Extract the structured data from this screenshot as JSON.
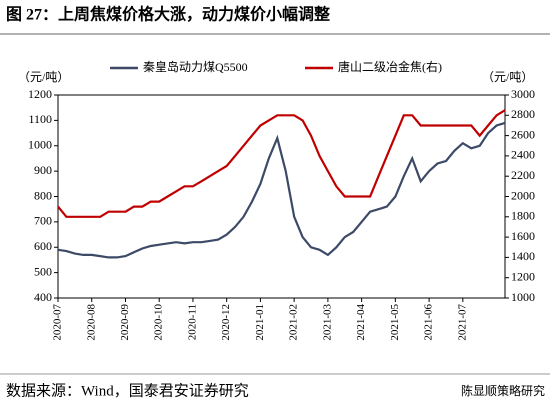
{
  "chart_data": {
    "type": "line",
    "title": "图 27：上周焦煤价格大涨，动力煤价小幅调整",
    "source": "数据来源：Wind，国泰君安证券研究",
    "watermark": "陈显顺策略研究",
    "y_unit": "（元/吨）",
    "y2_unit": "（元/吨）",
    "categories": [
      "2020-07",
      null,
      null,
      null,
      "2020-08",
      null,
      null,
      null,
      "2020-09",
      null,
      null,
      null,
      "2020-10",
      null,
      null,
      null,
      "2020-11",
      null,
      null,
      null,
      "2020-12",
      null,
      null,
      null,
      "2021-01",
      null,
      null,
      null,
      "2021-02",
      null,
      null,
      null,
      "2021-03",
      null,
      null,
      null,
      "2021-04",
      null,
      null,
      null,
      "2021-05",
      null,
      null,
      null,
      "2021-06",
      null,
      null,
      null,
      "2021-07",
      null,
      null,
      null,
      null,
      null
    ],
    "series": [
      {
        "name": "秦皇岛动力煤Q5500",
        "color": "#3c4a67",
        "axis": "y",
        "values": [
          590,
          585,
          575,
          570,
          570,
          565,
          560,
          560,
          565,
          580,
          595,
          605,
          610,
          615,
          620,
          615,
          620,
          620,
          625,
          630,
          650,
          680,
          720,
          780,
          850,
          950,
          1030,
          900,
          720,
          640,
          600,
          590,
          570,
          600,
          640,
          660,
          700,
          740,
          750,
          760,
          800,
          880,
          950,
          860,
          900,
          930,
          940,
          980,
          1010,
          990,
          1000,
          1050,
          1080,
          1090
        ]
      },
      {
        "name": "唐山二级冶金焦(右)",
        "color": "#c00000",
        "axis": "y2",
        "values": [
          1900,
          1800,
          1800,
          1800,
          1800,
          1800,
          1850,
          1850,
          1850,
          1900,
          1900,
          1950,
          1950,
          2000,
          2050,
          2100,
          2100,
          2150,
          2200,
          2250,
          2300,
          2400,
          2500,
          2600,
          2700,
          2750,
          2800,
          2800,
          2800,
          2750,
          2600,
          2400,
          2250,
          2100,
          2000,
          2000,
          2000,
          2000,
          2200,
          2400,
          2600,
          2800,
          2800,
          2700,
          2700,
          2700,
          2700,
          2700,
          2700,
          2700,
          2600,
          2700,
          2800,
          2850
        ]
      }
    ],
    "ylim": [
      400,
      1200
    ],
    "yticks": [
      400,
      500,
      600,
      700,
      800,
      900,
      1000,
      1100,
      1200
    ],
    "y2lim": [
      1000,
      3000
    ],
    "y2ticks": [
      1000,
      1200,
      1400,
      1600,
      1800,
      2000,
      2200,
      2400,
      2600,
      2800,
      3000
    ]
  }
}
